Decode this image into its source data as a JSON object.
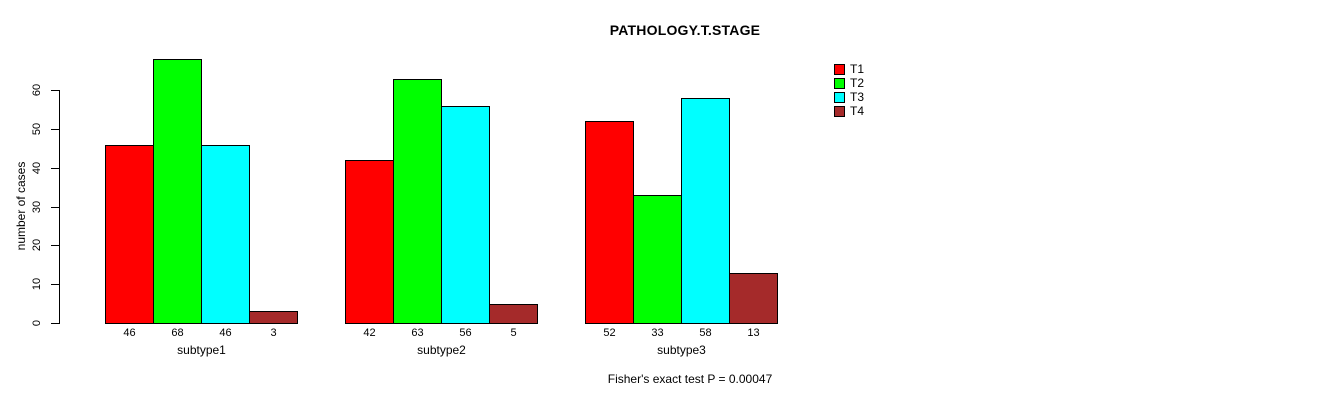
{
  "chart_data": {
    "type": "bar",
    "title": "PATHOLOGY.T.STAGE",
    "ylabel": "number of cases",
    "xlabel": "",
    "annotation": "Fisher's exact test P = 0.00047",
    "categories": [
      "subtype1",
      "subtype2",
      "subtype3"
    ],
    "series": [
      {
        "name": "T1",
        "color": "#ff0000",
        "values": [
          46,
          42,
          52
        ]
      },
      {
        "name": "T2",
        "color": "#00ff00",
        "values": [
          68,
          63,
          33
        ]
      },
      {
        "name": "T3",
        "color": "#00ffff",
        "values": [
          46,
          56,
          58
        ]
      },
      {
        "name": "T4",
        "color": "#a52a2a",
        "values": [
          3,
          5,
          13
        ]
      }
    ],
    "yticks": [
      0,
      10,
      20,
      30,
      40,
      50,
      60
    ],
    "ylim": [
      0,
      60
    ],
    "grid": false,
    "bar_value_labels_shown": true,
    "legend_position": "top-right",
    "axis_color": "#000000",
    "bar_border_color": "#000000"
  }
}
